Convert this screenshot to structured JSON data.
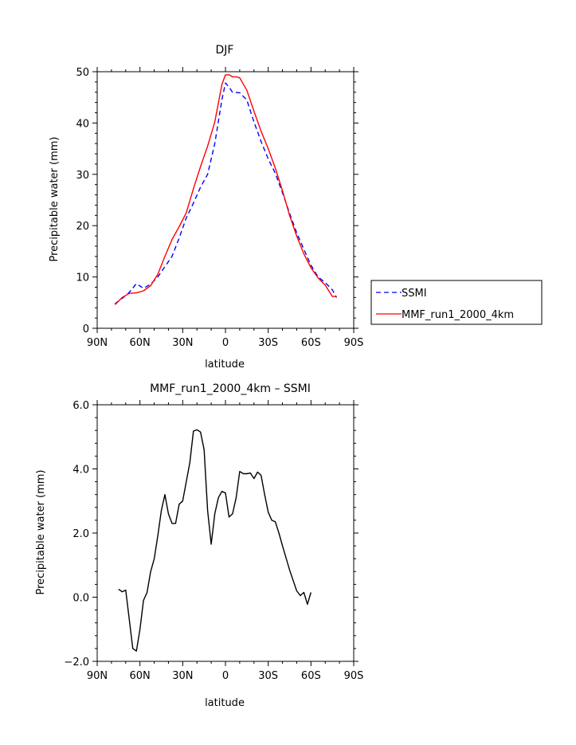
{
  "chart_data": [
    {
      "type": "line",
      "title": "DJF",
      "xlabel": "latitude",
      "ylabel": "Precipitable water (mm)",
      "xlim": [
        90,
        -90
      ],
      "ylim": [
        0,
        50
      ],
      "x_ticks": [
        90,
        60,
        30,
        0,
        -30,
        -60,
        -90
      ],
      "x_tick_labels": [
        "90N",
        "60N",
        "30N",
        "0",
        "30S",
        "60S",
        "90S"
      ],
      "y_ticks": [
        0,
        10,
        20,
        30,
        40,
        50
      ],
      "y_tick_labels": [
        "0",
        "10",
        "20",
        "30",
        "40",
        "50"
      ],
      "legend_position": "right",
      "series": [
        {
          "name": "SSMI",
          "color": "#0000ff",
          "style": "dashed",
          "points": [
            [
              77.5,
              4.8
            ],
            [
              72.5,
              5.8
            ],
            [
              67.5,
              7.0
            ],
            [
              62.5,
              8.7
            ],
            [
              57.5,
              7.8
            ],
            [
              52.5,
              8.6
            ],
            [
              47.5,
              10.0
            ],
            [
              42.5,
              12.0
            ],
            [
              37.5,
              14.0
            ],
            [
              32.5,
              17.6
            ],
            [
              27.5,
              21.5
            ],
            [
              22.5,
              24.4
            ],
            [
              17.5,
              27.5
            ],
            [
              12.5,
              30.0
            ],
            [
              7.5,
              36.0
            ],
            [
              2.5,
              44.5
            ],
            [
              0.0,
              47.8
            ],
            [
              -2.5,
              47.0
            ],
            [
              -5.0,
              46.0
            ],
            [
              -10.0,
              45.9
            ],
            [
              -15.0,
              44.5
            ],
            [
              -20.0,
              40.2
            ],
            [
              -25.0,
              36.4
            ],
            [
              -30.0,
              33.0
            ],
            [
              -35.0,
              30.2
            ],
            [
              -40.0,
              26.4
            ],
            [
              -45.0,
              22.4
            ],
            [
              -50.0,
              18.6
            ],
            [
              -55.0,
              15.4
            ],
            [
              -60.0,
              12.3
            ],
            [
              -65.0,
              10.0
            ],
            [
              -70.0,
              8.9
            ],
            [
              -75.0,
              7.5
            ],
            [
              -78.0,
              6.0
            ]
          ]
        },
        {
          "name": "MMF_run1_2000_4km",
          "color": "#ff0000",
          "style": "solid",
          "points": [
            [
              77.5,
              4.6
            ],
            [
              72.5,
              6.0
            ],
            [
              67.5,
              6.8
            ],
            [
              62.5,
              6.9
            ],
            [
              57.5,
              7.3
            ],
            [
              52.5,
              8.3
            ],
            [
              47.5,
              10.5
            ],
            [
              42.5,
              14.0
            ],
            [
              37.5,
              17.3
            ],
            [
              32.5,
              19.8
            ],
            [
              27.5,
              22.5
            ],
            [
              22.5,
              27.2
            ],
            [
              17.5,
              31.5
            ],
            [
              12.5,
              35.5
            ],
            [
              7.5,
              40.2
            ],
            [
              2.5,
              47.5
            ],
            [
              0.0,
              49.4
            ],
            [
              -2.5,
              49.4
            ],
            [
              -5.0,
              49.0
            ],
            [
              -7.5,
              49.0
            ],
            [
              -10.0,
              48.8
            ],
            [
              -15.0,
              46.4
            ],
            [
              -20.0,
              42.3
            ],
            [
              -25.0,
              38.4
            ],
            [
              -30.0,
              35.0
            ],
            [
              -35.0,
              31.2
            ],
            [
              -40.0,
              26.8
            ],
            [
              -45.0,
              22.0
            ],
            [
              -50.0,
              18.0
            ],
            [
              -55.0,
              14.5
            ],
            [
              -60.0,
              11.8
            ],
            [
              -65.0,
              9.8
            ],
            [
              -70.0,
              8.4
            ],
            [
              -75.0,
              6.2
            ],
            [
              -78.0,
              6.2
            ]
          ]
        }
      ]
    },
    {
      "type": "line",
      "title": "MMF_run1_2000_4km – SSMI",
      "xlabel": "latitude",
      "ylabel": "Precipitable water (mm)",
      "xlim": [
        90,
        -90
      ],
      "ylim": [
        -2,
        6
      ],
      "x_ticks": [
        90,
        60,
        30,
        0,
        -30,
        -60,
        -90
      ],
      "x_tick_labels": [
        "90N",
        "60N",
        "30N",
        "0",
        "30S",
        "60S",
        "90S"
      ],
      "y_ticks": [
        -2,
        0,
        2,
        4,
        6
      ],
      "y_tick_labels": [
        "−2.0",
        "0.0",
        "2.0",
        "4.0",
        "6.0"
      ],
      "series": [
        {
          "name": "MMF_run1_2000_4km – SSMI",
          "color": "#000000",
          "style": "solid",
          "points": [
            [
              75.0,
              0.25
            ],
            [
              72.5,
              0.17
            ],
            [
              70.0,
              0.22
            ],
            [
              65.0,
              -1.6
            ],
            [
              62.5,
              -1.68
            ],
            [
              60.0,
              -1.0
            ],
            [
              57.5,
              -0.1
            ],
            [
              55.0,
              0.15
            ],
            [
              52.5,
              0.8
            ],
            [
              50.0,
              1.2
            ],
            [
              47.5,
              1.9
            ],
            [
              45.0,
              2.7
            ],
            [
              42.5,
              3.2
            ],
            [
              40.0,
              2.6
            ],
            [
              37.5,
              2.3
            ],
            [
              35.0,
              2.3
            ],
            [
              32.5,
              2.9
            ],
            [
              30.0,
              3.0
            ],
            [
              27.5,
              3.6
            ],
            [
              25.0,
              4.2
            ],
            [
              22.5,
              5.18
            ],
            [
              20.0,
              5.22
            ],
            [
              17.5,
              5.15
            ],
            [
              15.0,
              4.6
            ],
            [
              12.5,
              2.7
            ],
            [
              10.0,
              1.65
            ],
            [
              7.5,
              2.6
            ],
            [
              5.0,
              3.1
            ],
            [
              2.5,
              3.3
            ],
            [
              0.0,
              3.25
            ],
            [
              -2.5,
              2.5
            ],
            [
              -5.0,
              2.6
            ],
            [
              -7.5,
              3.1
            ],
            [
              -10.0,
              3.92
            ],
            [
              -12.5,
              3.85
            ],
            [
              -15.0,
              3.85
            ],
            [
              -17.5,
              3.87
            ],
            [
              -20.0,
              3.7
            ],
            [
              -22.5,
              3.9
            ],
            [
              -25.0,
              3.8
            ],
            [
              -27.5,
              3.2
            ],
            [
              -30.0,
              2.65
            ],
            [
              -32.5,
              2.4
            ],
            [
              -35.0,
              2.35
            ],
            [
              -37.5,
              2.0
            ],
            [
              -40.0,
              1.6
            ],
            [
              -45.0,
              0.85
            ],
            [
              -50.0,
              0.2
            ],
            [
              -52.5,
              0.05
            ],
            [
              -55.0,
              0.15
            ],
            [
              -57.5,
              -0.22
            ],
            [
              -60.0,
              0.15
            ]
          ]
        }
      ]
    }
  ]
}
